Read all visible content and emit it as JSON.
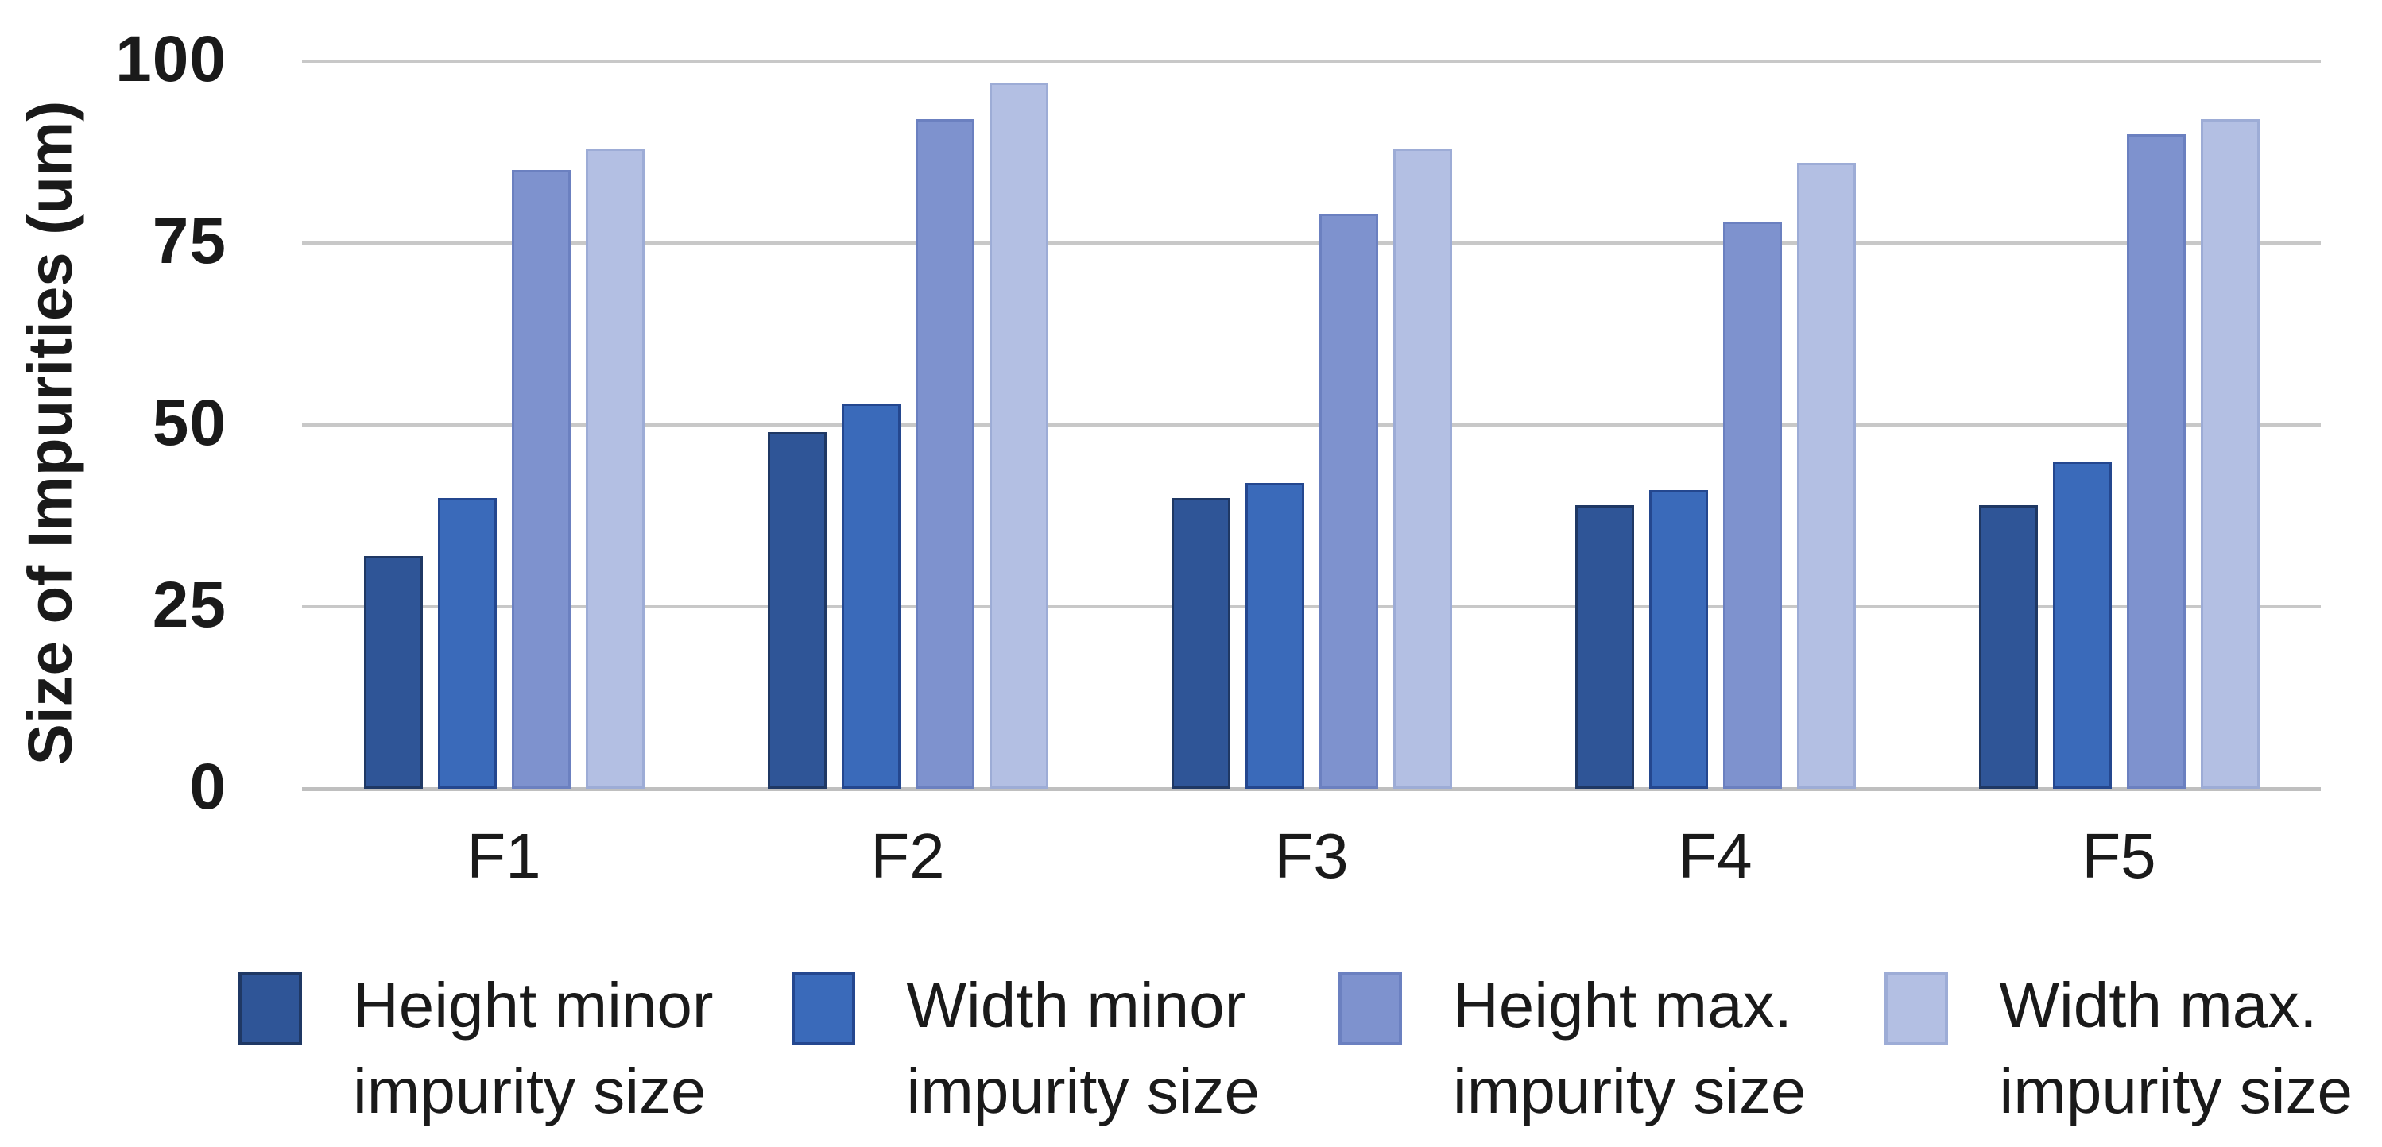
{
  "chart_data": {
    "type": "bar",
    "title": "",
    "xlabel": "",
    "ylabel": "Size of Impurities (um)",
    "ylim": [
      0,
      100
    ],
    "yticks": [
      0,
      25,
      50,
      75,
      100
    ],
    "grid": true,
    "legend_position": "bottom",
    "categories": [
      "F1",
      "F2",
      "F3",
      "F4",
      "F5"
    ],
    "series": [
      {
        "name": "Height minor impurity size",
        "legend_lines": [
          "Height minor",
          "impurity size"
        ],
        "color": "#2F5597",
        "border": "#1F3864",
        "values": [
          32,
          49,
          40,
          39,
          39
        ]
      },
      {
        "name": "Width minor impurity size",
        "legend_lines": [
          "Width minor",
          "impurity size"
        ],
        "color": "#3A6ABA",
        "border": "#24478F",
        "values": [
          40,
          53,
          42,
          41,
          45
        ]
      },
      {
        "name": "Height max. impurity size",
        "legend_lines": [
          "Height max.",
          "impurity size"
        ],
        "color": "#7E92CE",
        "border": "#6B80C0",
        "values": [
          85,
          92,
          79,
          78,
          90
        ]
      },
      {
        "name": "Width max. impurity size",
        "legend_lines": [
          "Width max.",
          "impurity size"
        ],
        "color": "#B3BFE3",
        "border": "#9DACD6",
        "values": [
          88,
          97,
          88,
          86,
          92
        ]
      }
    ],
    "colors": {
      "gridline": "#C8C8C8",
      "baseline": "#BFBFBF",
      "text": "#1A1A1A",
      "background": "#FFFFFF"
    }
  }
}
